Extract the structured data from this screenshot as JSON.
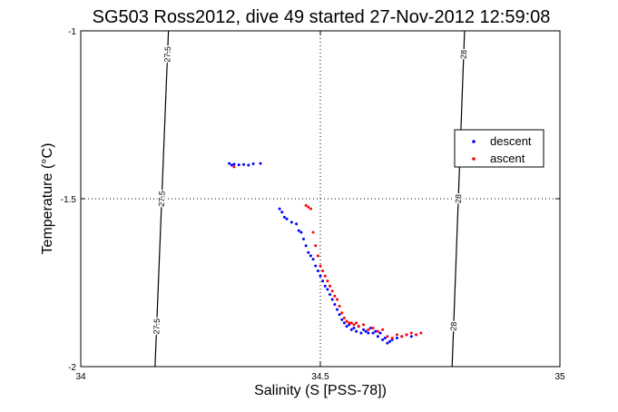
{
  "chart_data": {
    "type": "scatter",
    "title": "SG503 Ross2012, dive 49 started 27-Nov-2012 12:59:08",
    "xlabel": "Salinity (S [PSS-78])",
    "ylabel": "Temperature (°C)",
    "xlim": [
      34,
      35
    ],
    "ylim": [
      -2,
      -1
    ],
    "xticks": [
      34,
      34.5,
      35
    ],
    "yticks": [
      -2,
      -1.5,
      -1
    ],
    "xtick_labels": [
      "34",
      "34.5",
      "35"
    ],
    "ytick_labels": [
      "-2",
      "-1.5",
      "-1"
    ],
    "grid": true,
    "legend_position": "right",
    "isopycnals": [
      {
        "label": "27.5",
        "points": [
          [
            34.183,
            -1
          ],
          [
            34.155,
            -2
          ]
        ]
      },
      {
        "label": "28",
        "points": [
          [
            34.801,
            -1
          ],
          [
            34.775,
            -2
          ]
        ]
      }
    ],
    "series": [
      {
        "name": "descent",
        "color": "#0000ff",
        "x": [
          34.31,
          34.315,
          34.32,
          34.33,
          34.34,
          34.35,
          34.36,
          34.375,
          34.415,
          34.42,
          34.425,
          34.43,
          34.44,
          34.45,
          34.455,
          34.46,
          34.465,
          34.47,
          34.475,
          34.48,
          34.485,
          34.49,
          34.495,
          34.5,
          34.505,
          34.51,
          34.515,
          34.52,
          34.525,
          34.53,
          34.535,
          34.54,
          34.545,
          34.55,
          34.555,
          34.56,
          34.565,
          34.57,
          34.575,
          34.58,
          34.585,
          34.59,
          34.595,
          34.6,
          34.605,
          34.61,
          34.615,
          34.62,
          34.625,
          34.63,
          34.635,
          34.64,
          34.645,
          34.65,
          34.66,
          34.67,
          34.68,
          34.69,
          34.7
        ],
        "y": [
          -1.395,
          -1.4,
          -1.397,
          -1.399,
          -1.398,
          -1.4,
          -1.396,
          -1.395,
          -1.53,
          -1.54,
          -1.555,
          -1.56,
          -1.57,
          -1.575,
          -1.595,
          -1.6,
          -1.62,
          -1.64,
          -1.66,
          -1.67,
          -1.68,
          -1.7,
          -1.715,
          -1.73,
          -1.745,
          -1.76,
          -1.77,
          -1.785,
          -1.8,
          -1.815,
          -1.83,
          -1.845,
          -1.86,
          -1.87,
          -1.88,
          -1.875,
          -1.89,
          -1.885,
          -1.895,
          -1.88,
          -1.9,
          -1.89,
          -1.895,
          -1.9,
          -1.885,
          -1.9,
          -1.895,
          -1.91,
          -1.9,
          -1.92,
          -1.915,
          -1.93,
          -1.925,
          -1.92,
          -1.915,
          -1.91,
          -1.905,
          -1.91,
          -1.905
        ]
      },
      {
        "name": "ascent",
        "color": "#ff0000",
        "x": [
          34.32,
          34.47,
          34.475,
          34.48,
          34.485,
          34.49,
          34.495,
          34.5,
          34.505,
          34.51,
          34.515,
          34.52,
          34.525,
          34.53,
          34.535,
          34.54,
          34.545,
          34.55,
          34.555,
          34.56,
          34.565,
          34.57,
          34.575,
          34.58,
          34.59,
          34.6,
          34.61,
          34.62,
          34.63,
          34.64,
          34.65,
          34.66,
          34.67,
          34.68,
          34.69,
          34.7,
          34.71
        ],
        "y": [
          -1.405,
          -1.52,
          -1.525,
          -1.53,
          -1.6,
          -1.64,
          -1.67,
          -1.7,
          -1.715,
          -1.73,
          -1.745,
          -1.76,
          -1.775,
          -1.79,
          -1.8,
          -1.82,
          -1.84,
          -1.855,
          -1.865,
          -1.87,
          -1.87,
          -1.875,
          -1.87,
          -1.88,
          -1.875,
          -1.89,
          -1.885,
          -1.895,
          -1.89,
          -1.91,
          -1.915,
          -1.905,
          -1.91,
          -1.905,
          -1.9,
          -1.905,
          -1.9
        ]
      }
    ]
  }
}
